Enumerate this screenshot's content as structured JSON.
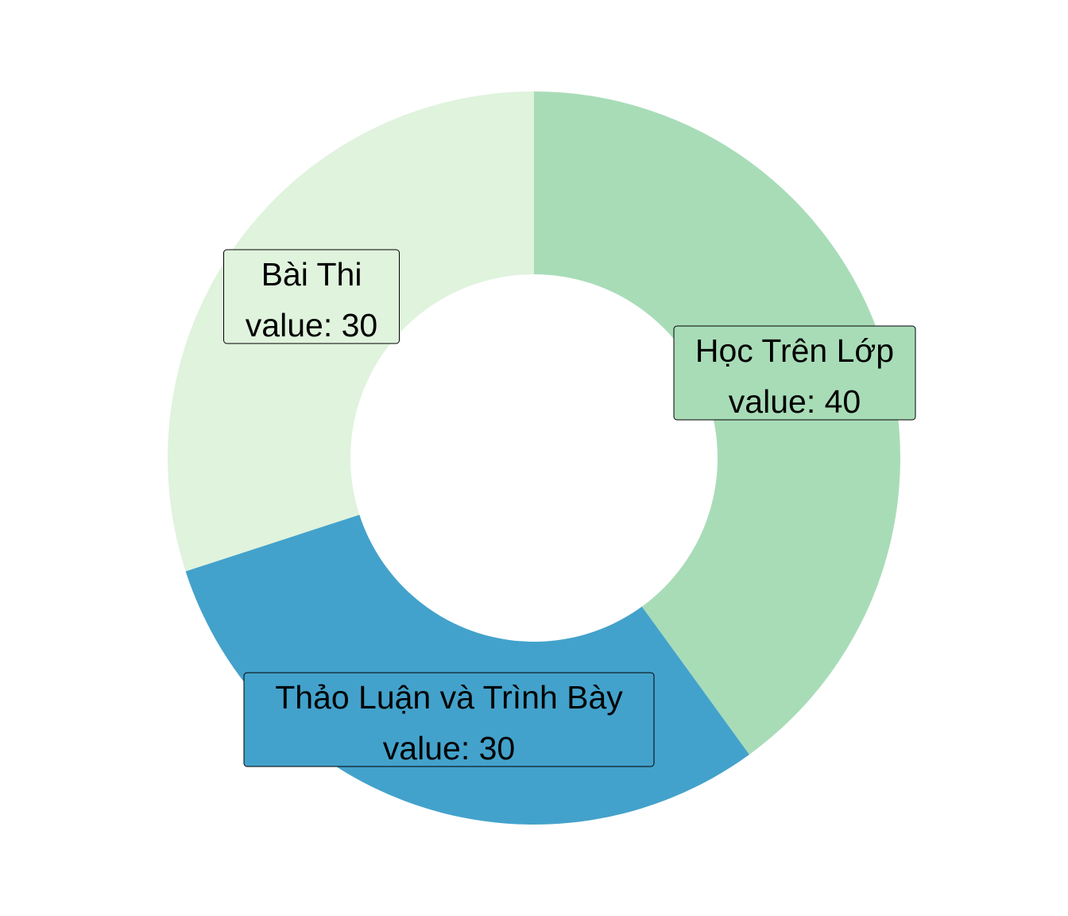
{
  "chart_data": {
    "type": "pie",
    "donut": true,
    "slices": [
      {
        "name": "Học Trên Lớp",
        "value": 40,
        "value_text": "value: 40",
        "color": "#a8dcb7"
      },
      {
        "name": "Thảo Luận và Trình Bày",
        "value": 30,
        "value_text": "value: 30",
        "color": "#43a2cb"
      },
      {
        "name": "Bài Thi",
        "value": 30,
        "value_text": "value: 30",
        "color": "#dff3dd"
      }
    ],
    "legend": "none"
  }
}
